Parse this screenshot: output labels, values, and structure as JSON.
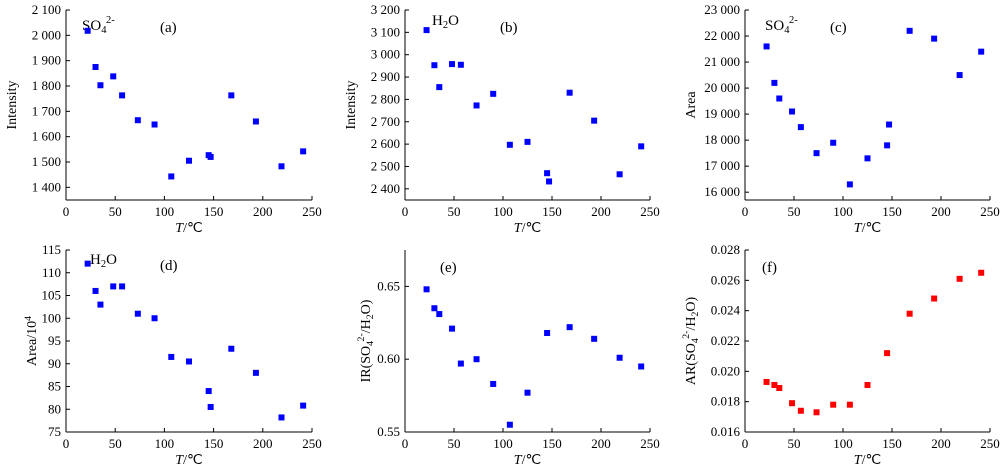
{
  "chart_data": [
    {
      "type": "scatter",
      "panel_label": "(a)",
      "species": {
        "base": "SO",
        "sub": "4",
        "sup": "2-"
      },
      "ylabel": "Intensity",
      "xlabel": {
        "var": "T",
        "unit": "/℃"
      },
      "xlim": [
        0,
        250
      ],
      "ylim": [
        1350,
        2100
      ],
      "xticks": [
        0,
        50,
        100,
        150,
        200,
        250
      ],
      "xtick_labels": [
        "0",
        "50",
        "100",
        "150",
        "200",
        "250"
      ],
      "yticks": [
        1400,
        1500,
        1600,
        1700,
        1800,
        1900,
        2000,
        2100
      ],
      "ytick_labels": [
        "1 400",
        "1 500",
        "1 600",
        "1 700",
        "1 800",
        "1 900",
        "2 000",
        "2 100"
      ],
      "marker_color": "#0000ff",
      "x": [
        22,
        30,
        35,
        48,
        57,
        73,
        90,
        107,
        125,
        145,
        147,
        168,
        193,
        219,
        241
      ],
      "y": [
        2018,
        1875,
        1803,
        1838,
        1763,
        1665,
        1648,
        1443,
        1505,
        1527,
        1520,
        1763,
        1660,
        1483,
        1542
      ]
    },
    {
      "type": "scatter",
      "panel_label": "(b)",
      "species": {
        "base": "H",
        "sub": "2",
        "tail": "O"
      },
      "ylabel": "Intensity",
      "xlabel": {
        "var": "T",
        "unit": "/℃"
      },
      "xlim": [
        0,
        250
      ],
      "ylim": [
        2350,
        3200
      ],
      "xticks": [
        0,
        50,
        100,
        150,
        200,
        250
      ],
      "xtick_labels": [
        "0",
        "50",
        "100",
        "150",
        "200",
        "250"
      ],
      "yticks": [
        2400,
        2500,
        2600,
        2700,
        2800,
        2900,
        3000,
        3100,
        3200
      ],
      "ytick_labels": [
        "2 400",
        "2 500",
        "2 600",
        "2 700",
        "2 800",
        "2 900",
        "3 000",
        "3 100",
        "3 200"
      ],
      "marker_color": "#0000ff",
      "x": [
        22,
        30,
        35,
        48,
        57,
        73,
        90,
        107,
        125,
        145,
        147,
        168,
        193,
        219,
        241
      ],
      "y": [
        3110,
        2953,
        2855,
        2958,
        2955,
        2773,
        2825,
        2597,
        2610,
        2470,
        2433,
        2830,
        2705,
        2465,
        2590
      ]
    },
    {
      "type": "scatter",
      "panel_label": "(c)",
      "species": {
        "base": "SO",
        "sub": "4",
        "sup": "2-"
      },
      "ylabel": "Area",
      "xlabel": {
        "var": "T",
        "unit": "/℃"
      },
      "xlim": [
        0,
        250
      ],
      "ylim": [
        15700,
        23000
      ],
      "xticks": [
        0,
        50,
        100,
        150,
        200,
        250
      ],
      "xtick_labels": [
        "0",
        "50",
        "100",
        "150",
        "200",
        "250"
      ],
      "yticks": [
        16000,
        17000,
        18000,
        19000,
        20000,
        21000,
        22000,
        23000
      ],
      "ytick_labels": [
        "16 000",
        "17 000",
        "18 000",
        "19 000",
        "20 000",
        "21 000",
        "22 000",
        "23 000"
      ],
      "marker_color": "#0000ff",
      "x": [
        22,
        30,
        35,
        48,
        57,
        73,
        90,
        107,
        125,
        145,
        147,
        168,
        193,
        219,
        241
      ],
      "y": [
        21600,
        20200,
        19600,
        19100,
        18500,
        17500,
        17900,
        16300,
        17300,
        17800,
        18600,
        22200,
        21900,
        20500,
        21400
      ]
    },
    {
      "type": "scatter",
      "panel_label": "(d)",
      "species": {
        "base": "H",
        "sub": "2",
        "tail": "O"
      },
      "ylabel": {
        "base": "Area/10",
        "sup": "4"
      },
      "xlabel": {
        "var": "T",
        "unit": "/℃"
      },
      "xlim": [
        0,
        250
      ],
      "ylim": [
        75,
        115
      ],
      "xticks": [
        0,
        50,
        100,
        150,
        200,
        250
      ],
      "xtick_labels": [
        "0",
        "50",
        "100",
        "150",
        "200",
        "250"
      ],
      "yticks": [
        75,
        80,
        85,
        90,
        95,
        100,
        105,
        110,
        115
      ],
      "ytick_labels": [
        "75",
        "80",
        "85",
        "90",
        "95",
        "100",
        "105",
        "110",
        "115"
      ],
      "marker_color": "#0000ff",
      "x": [
        22,
        30,
        35,
        48,
        57,
        73,
        90,
        107,
        125,
        145,
        147,
        168,
        193,
        219,
        241
      ],
      "y": [
        112,
        106,
        103,
        107,
        107,
        101,
        100,
        91.5,
        90.5,
        84,
        80.5,
        93.3,
        88,
        78.2,
        80.8
      ]
    },
    {
      "type": "scatter",
      "panel_label": "(e)",
      "ylabel": {
        "base": "IR(SO",
        "sub": "4",
        "sup": "2-",
        "tail": "/H",
        "sub2": "2",
        "tail2": "O)"
      },
      "xlabel": {
        "var": "T",
        "unit": "/℃"
      },
      "xlim": [
        0,
        250
      ],
      "ylim": [
        0.55,
        0.675
      ],
      "xticks": [
        0,
        50,
        100,
        150,
        200,
        250
      ],
      "xtick_labels": [
        "0",
        "50",
        "100",
        "150",
        "200",
        "250"
      ],
      "yticks": [
        0.55,
        0.6,
        0.65
      ],
      "ytick_labels": [
        "0.55",
        "0.60",
        "0.65"
      ],
      "marker_color": "#0000ff",
      "x": [
        22,
        30,
        35,
        48,
        57,
        73,
        90,
        107,
        125,
        145,
        168,
        193,
        219,
        241
      ],
      "y": [
        0.648,
        0.635,
        0.631,
        0.621,
        0.597,
        0.6,
        0.583,
        0.555,
        0.577,
        0.618,
        0.622,
        0.614,
        0.601,
        0.595
      ]
    },
    {
      "type": "scatter",
      "panel_label": "(f)",
      "ylabel": {
        "base": "AR(SO",
        "sub": "4",
        "sup": "2-",
        "tail": "/H",
        "sub2": "2",
        "tail2": "O)"
      },
      "xlabel": {
        "var": "T",
        "unit": "/℃"
      },
      "xlim": [
        0,
        250
      ],
      "ylim": [
        0.016,
        0.028
      ],
      "xticks": [
        0,
        50,
        100,
        150,
        200,
        250
      ],
      "xtick_labels": [
        "0",
        "50",
        "100",
        "150",
        "200",
        "250"
      ],
      "yticks": [
        0.016,
        0.018,
        0.02,
        0.022,
        0.024,
        0.026,
        0.028
      ],
      "ytick_labels": [
        "0.016",
        "0.018",
        "0.020",
        "0.022",
        "0.024",
        "0.026",
        "0.028"
      ],
      "marker_color": "#ff0000",
      "x": [
        22,
        30,
        35,
        48,
        57,
        73,
        90,
        107,
        125,
        145,
        168,
        193,
        219,
        241
      ],
      "y": [
        0.0193,
        0.0191,
        0.0189,
        0.0179,
        0.0174,
        0.0173,
        0.0178,
        0.0178,
        0.0191,
        0.0212,
        0.0238,
        0.0248,
        0.0261,
        0.0265
      ]
    }
  ]
}
